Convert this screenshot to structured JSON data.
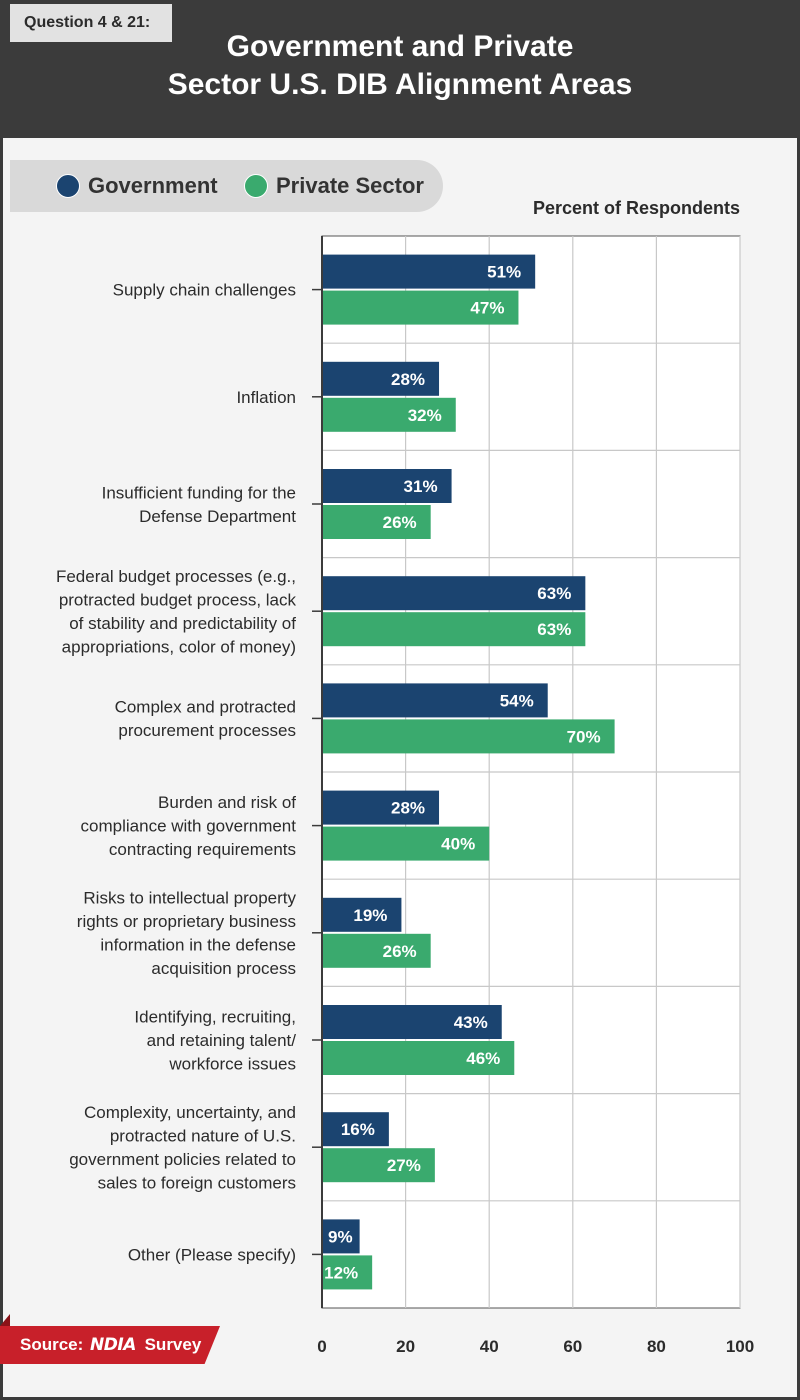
{
  "header": {
    "question": "Question 4 & 21:",
    "title": "Government and Private\nSector U.S. DIB Alignment Areas"
  },
  "legend": {
    "government": "Government",
    "private": "Private Sector"
  },
  "colors": {
    "government": "#1b4470",
    "private": "#3aaa6e",
    "grid": "#c8c8c8",
    "axis": "#3b3b3b",
    "header_bg": "#3b3b3b",
    "source_red": "#c8202a"
  },
  "source": {
    "label": "Source:",
    "logo": "NDIA",
    "suffix": "Survey"
  },
  "chart_data": {
    "type": "bar",
    "orientation": "horizontal",
    "title": "Government and Private Sector U.S. DIB Alignment Areas",
    "xlabel": "Percent of Respondents",
    "xlim": [
      0,
      100
    ],
    "xticks": [
      0,
      20,
      40,
      60,
      80,
      100
    ],
    "grid": true,
    "legend_position": "top-left",
    "categories": [
      "Supply chain challenges",
      "Inflation",
      "Insufficient funding for the\nDefense Department",
      "Federal budget processes (e.g.,\nprotracted budget process, lack\nof stability and predictability of\nappropriations, color of money)",
      "Complex and protracted\nprocurement processes",
      "Burden and risk of\ncompliance with government\ncontracting requirements",
      "Risks to intellectual property\nrights or proprietary business\ninformation in the defense\nacquisition process",
      "Identifying, recruiting,\nand retaining talent/\nworkforce issues",
      "Complexity, uncertainty, and\nprotracted nature of U.S.\ngovernment policies related to\nsales to foreign customers",
      "Other (Please specify)"
    ],
    "series": [
      {
        "name": "Government",
        "values": [
          51,
          28,
          31,
          63,
          54,
          28,
          19,
          43,
          16,
          9
        ]
      },
      {
        "name": "Private Sector",
        "values": [
          47,
          32,
          26,
          63,
          70,
          40,
          26,
          46,
          27,
          12
        ]
      }
    ],
    "value_suffix": "%"
  }
}
